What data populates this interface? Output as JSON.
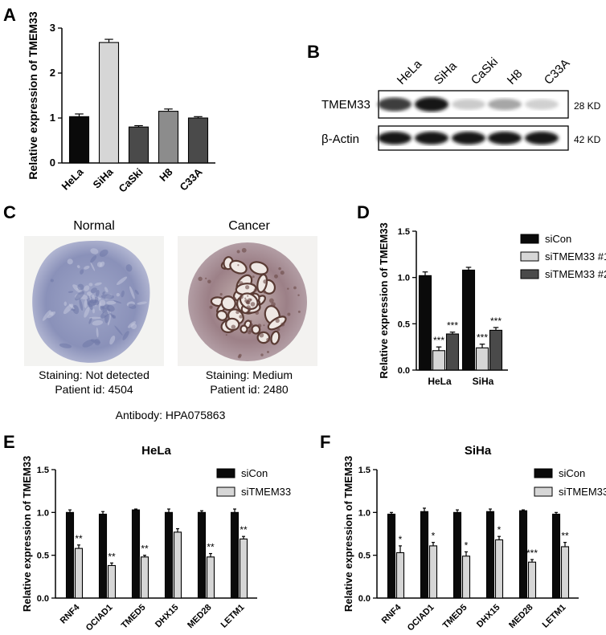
{
  "panel_letters": {
    "A": "A",
    "B": "B",
    "C": "C",
    "D": "D",
    "E": "E",
    "F": "F"
  },
  "colors": {
    "black": "#0a0a0a",
    "light": "#d6d6d6",
    "mid": "#8c8c8c",
    "dark": "#4a4a4a"
  },
  "blot": {
    "lanes": [
      "HeLa",
      "SiHa",
      "CaSki",
      "H8",
      "C33A"
    ],
    "rows": [
      {
        "label": "TMEM33",
        "size": "28 KD",
        "intensity": [
          0.82,
          1.0,
          0.22,
          0.38,
          0.2
        ]
      },
      {
        "label": "β-Actin",
        "size": "42 KD",
        "intensity": [
          1.0,
          1.0,
          1.0,
          1.0,
          1.0
        ]
      }
    ]
  },
  "histology": {
    "normal": {
      "title": "Normal",
      "staining": "Staining: Not detected",
      "patient": "Patient id: 4504"
    },
    "cancer": {
      "title": "Cancer",
      "staining": "Staining: Medium",
      "patient": "Patient id: 2480"
    },
    "antibody": "Antibody: HPA075863"
  },
  "chart_data": [
    {
      "panel": "A",
      "type": "bar",
      "categories": [
        "HeLa",
        "SiHa",
        "CaSki",
        "H8",
        "C33A"
      ],
      "values": [
        1.03,
        2.68,
        0.8,
        1.15,
        1.0
      ],
      "errors": [
        0.06,
        0.07,
        0.03,
        0.05,
        0.03
      ],
      "bar_colors": [
        "#0a0a0a",
        "#d6d6d6",
        "#4a4a4a",
        "#8c8c8c",
        "#4a4a4a"
      ],
      "ylabel": "Relative expression of TMEM33",
      "ylim": [
        0,
        3
      ],
      "yticks": [
        "0",
        "1",
        "2",
        "3"
      ]
    },
    {
      "panel": "D",
      "type": "bar",
      "categories": [
        "HeLa",
        "SiHa"
      ],
      "series": [
        {
          "name": "siCon",
          "values": [
            1.02,
            1.08
          ],
          "errors": [
            0.04,
            0.03
          ],
          "sig": [
            "",
            ""
          ]
        },
        {
          "name": "siTMEM33 #1",
          "values": [
            0.21,
            0.24
          ],
          "errors": [
            0.04,
            0.04
          ],
          "sig": [
            "***",
            "***"
          ]
        },
        {
          "name": "siTMEM33 #2",
          "values": [
            0.39,
            0.43
          ],
          "errors": [
            0.02,
            0.03
          ],
          "sig": [
            "***",
            "***"
          ]
        }
      ],
      "ylabel": "Relative expression of TMEM33",
      "ylim": [
        0,
        1.5
      ],
      "yticks": [
        "0.0",
        "0.5",
        "1.0",
        "1.5"
      ]
    },
    {
      "panel": "E",
      "type": "bar",
      "title": "HeLa",
      "categories": [
        "RNF4",
        "OCIAD1",
        "TMED5",
        "DHX15",
        "MED28",
        "LETM1"
      ],
      "series": [
        {
          "name": "siCon",
          "values": [
            1.0,
            0.98,
            1.03,
            1.0,
            1.0,
            1.0
          ],
          "errors": [
            0.03,
            0.03,
            0.01,
            0.04,
            0.02,
            0.04
          ],
          "sig": [
            "",
            "",
            "",
            "",
            "",
            ""
          ]
        },
        {
          "name": "siTMEM33",
          "values": [
            0.58,
            0.38,
            0.48,
            0.77,
            0.48,
            0.69
          ],
          "errors": [
            0.04,
            0.03,
            0.02,
            0.04,
            0.04,
            0.03
          ],
          "sig": [
            "**",
            "**",
            "**",
            "",
            "**",
            "**"
          ]
        }
      ],
      "ylabel": "Relative expression of TMEM33",
      "ylim": [
        0,
        1.5
      ],
      "yticks": [
        "0.0",
        "0.5",
        "1.0",
        "1.5"
      ]
    },
    {
      "panel": "F",
      "type": "bar",
      "title": "SiHa",
      "categories": [
        "RNF4",
        "OCIAD1",
        "TMED5",
        "DHX15",
        "MED28",
        "LETM1"
      ],
      "series": [
        {
          "name": "siCon",
          "values": [
            0.98,
            1.01,
            1.0,
            1.01,
            1.02,
            0.98
          ],
          "errors": [
            0.02,
            0.04,
            0.03,
            0.03,
            0.01,
            0.02
          ],
          "sig": [
            "",
            "",
            "",
            "",
            "",
            ""
          ]
        },
        {
          "name": "siTMEM33",
          "values": [
            0.53,
            0.61,
            0.49,
            0.68,
            0.42,
            0.6
          ],
          "errors": [
            0.08,
            0.04,
            0.05,
            0.04,
            0.03,
            0.05
          ],
          "sig": [
            "*",
            "*",
            "*",
            "*",
            "***",
            "**"
          ]
        }
      ],
      "ylabel": "Relative expression of TMEM33",
      "ylim": [
        0,
        1.5
      ],
      "yticks": [
        "0.0",
        "0.5",
        "1.0",
        "1.5"
      ]
    }
  ]
}
